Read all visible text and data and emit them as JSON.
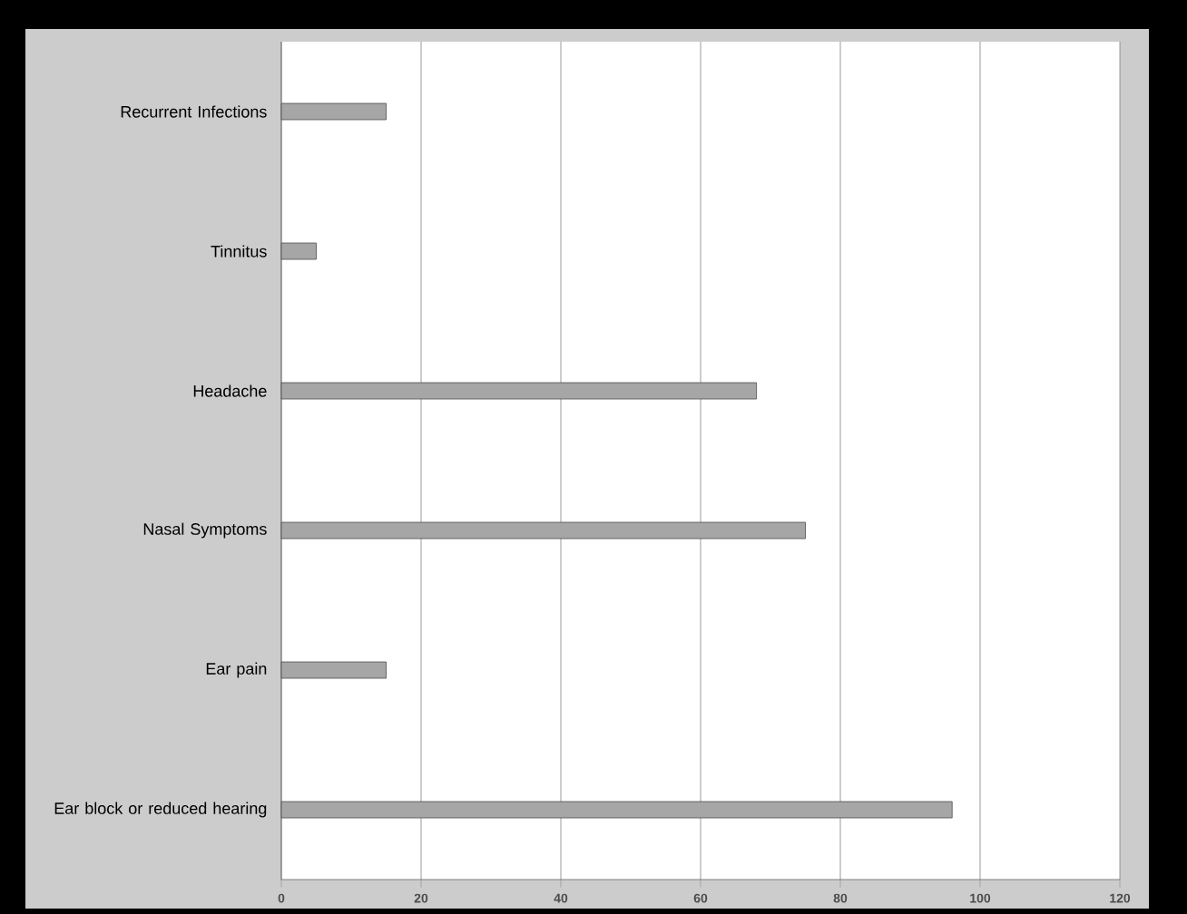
{
  "chart_data": {
    "type": "bar",
    "orientation": "horizontal",
    "categories": [
      "Recurrent Infections",
      "Tinnitus",
      "Headache",
      "Nasal Symptoms",
      "Ear pain",
      "Ear block or reduced hearing"
    ],
    "values": [
      15,
      5,
      68,
      75,
      15,
      96
    ],
    "color": "#a6a6a6",
    "xlim": [
      0,
      120
    ],
    "xticks": [
      0,
      20,
      40,
      60,
      80,
      100,
      120
    ],
    "grid": "x"
  }
}
